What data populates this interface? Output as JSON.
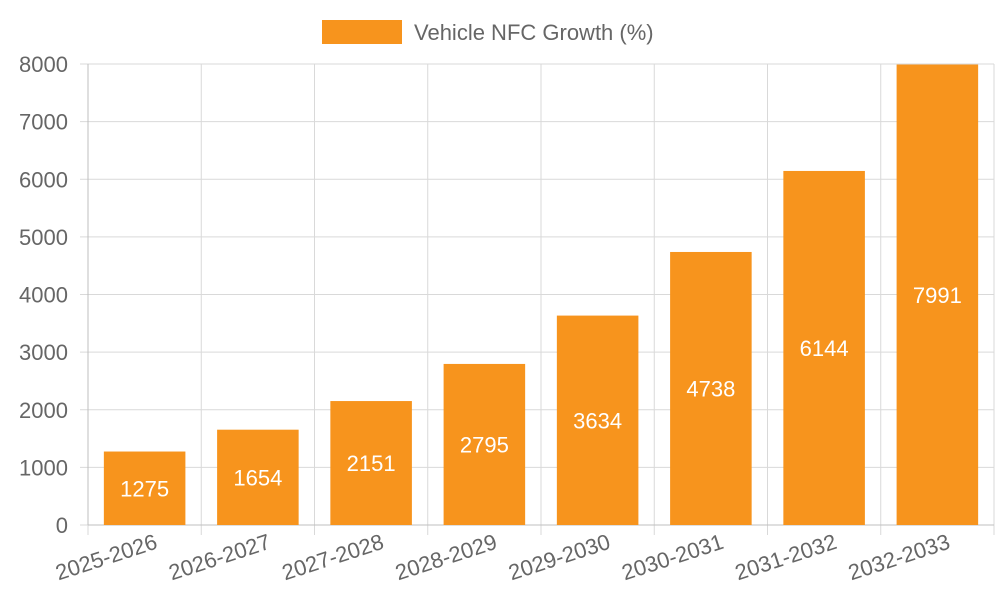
{
  "chart_data": {
    "type": "bar",
    "title": "",
    "xlabel": "",
    "ylabel": "",
    "categories": [
      "2025-2026",
      "2026-2027",
      "2027-2028",
      "2028-2029",
      "2029-2030",
      "2030-2031",
      "2031-2032",
      "2032-2033"
    ],
    "series": [
      {
        "name": "Vehicle NFC Growth (%)",
        "color": "#f7941d",
        "values": [
          1275,
          1654,
          2151,
          2795,
          3634,
          4738,
          6144,
          7991
        ]
      }
    ],
    "ylim": [
      0,
      8000
    ],
    "yticks": [
      0,
      1000,
      2000,
      3000,
      4000,
      5000,
      6000,
      7000,
      8000
    ],
    "grid": true,
    "legend_position": "top-center",
    "data_labels": true
  }
}
